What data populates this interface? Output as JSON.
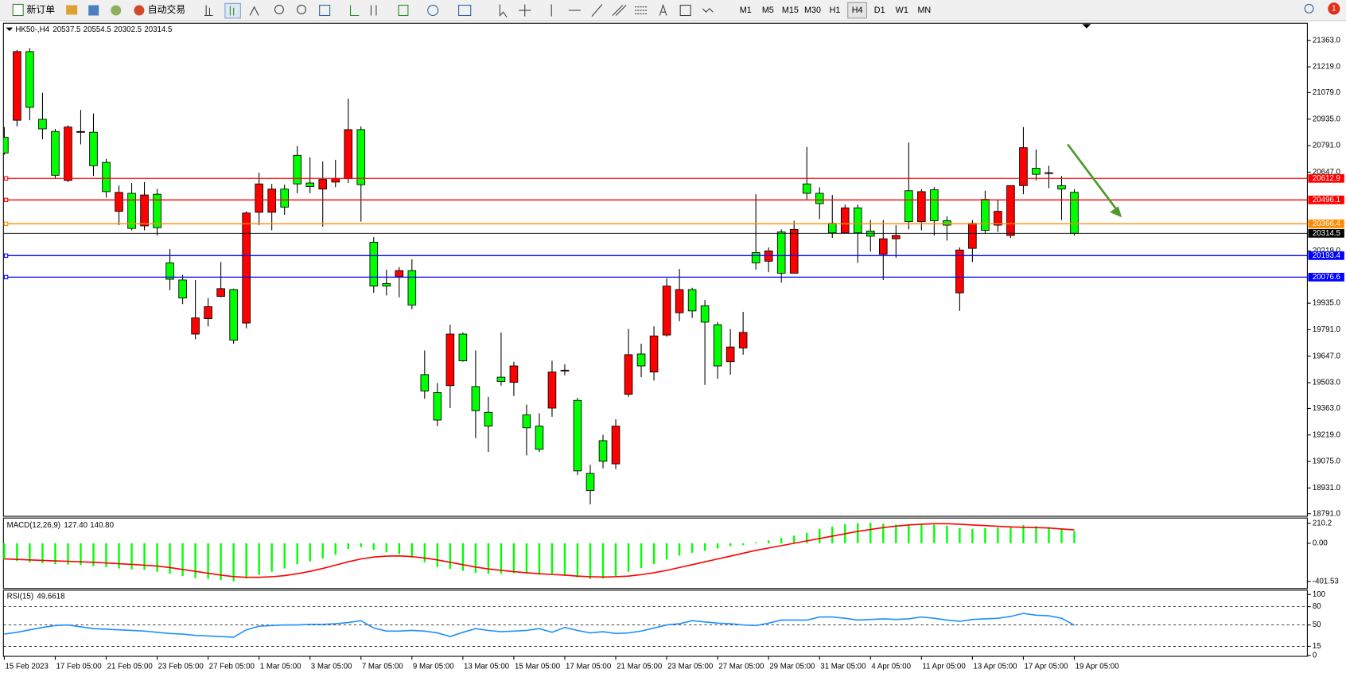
{
  "toolbar": {
    "new_order": "新订单",
    "auto_trading": "自动交易",
    "timeframes": [
      "M1",
      "M5",
      "M15",
      "M30",
      "H1",
      "H4",
      "D1",
      "W1",
      "MN"
    ]
  },
  "notifications": 1,
  "chart_data": [
    {
      "type": "candlestick",
      "title": "HK50-,H4",
      "up_color": "#ff0000",
      "down_color": "#00ff00",
      "categories": [
        "15 Feb 2023",
        null,
        null,
        null,
        "17 Feb 05:00",
        null,
        null,
        null,
        "21 Feb 05:00",
        null,
        null,
        null,
        "23 Feb 05:00",
        null,
        null,
        null,
        "27 Feb 05:00",
        null,
        null,
        null,
        "1 Mar 05:00",
        null,
        null,
        null,
        "3 Mar 05:00",
        null,
        null,
        null,
        "7 Mar 05:00",
        null,
        null,
        null,
        "9 Mar 05:00",
        null,
        null,
        null,
        "13 Mar 05:00",
        null,
        null,
        null,
        "15 Mar 05:00",
        null,
        null,
        null,
        "17 Mar 05:00",
        null,
        null,
        null,
        "21 Mar 05:00",
        null,
        null,
        null,
        "23 Mar 05:00",
        null,
        null,
        null,
        "27 Mar 05:00",
        null,
        null,
        null,
        "29 Mar 05:00",
        null,
        null,
        null,
        "31 Mar 05:00",
        null,
        null,
        null,
        "4 Apr 05:00",
        null,
        null,
        null,
        "11 Apr 05:00",
        null,
        null,
        null,
        "13 Apr 05:00",
        null,
        null,
        null,
        "17 Apr 05:00",
        null,
        null,
        null,
        "19 Apr 05:00"
      ],
      "open": [
        20836,
        20929,
        21302,
        20934,
        20868,
        20602,
        20868,
        20864,
        20700,
        20434,
        20532,
        20355,
        20527,
        20154,
        20061,
        19767,
        19851,
        19972,
        20009,
        19827,
        20429,
        20429,
        20555,
        20738,
        20588,
        20555,
        20593,
        20612,
        20878,
        20266,
        20042,
        20079,
        20112,
        19547,
        19449,
        19487,
        19767,
        19482,
        19342,
        19533,
        19505,
        19328,
        19267,
        19365,
        19571,
        19407,
        19010,
        19188,
        19062,
        19440,
        19659,
        19561,
        19762,
        19883,
        20009,
        19921,
        19818,
        19617,
        19692,
        20210,
        20163,
        20322,
        20098,
        20583,
        20532,
        20369,
        20317,
        20453,
        20327,
        20201,
        20285,
        20546,
        20378,
        20551,
        20383,
        19991,
        20233,
        20499,
        20359,
        20303,
        20574,
        20668,
        20644,
        20574,
        20537.5
      ],
      "high": [
        20892,
        21312,
        21321,
        21078,
        20882,
        20901,
        20985,
        20966,
        20719,
        20574,
        20588,
        20593,
        20555,
        20229,
        20089,
        20061,
        19963,
        20159,
        20014,
        20434,
        20644,
        20583,
        20579,
        20789,
        20728,
        20705,
        20714,
        21046,
        20896,
        20294,
        20117,
        20131,
        20173,
        19678,
        19501,
        19818,
        19776,
        19678,
        19426,
        19776,
        19617,
        19384,
        19337,
        19622,
        19603,
        19421,
        19057,
        19220,
        19304,
        19795,
        19715,
        19809,
        20070,
        20121,
        20019,
        19953,
        19832,
        19795,
        19888,
        20527,
        20238,
        20336,
        20383,
        20784,
        20565,
        20523,
        20471,
        20471,
        20387,
        20387,
        20359,
        20808,
        20555,
        20565,
        20406,
        20238,
        20387,
        20546,
        20499,
        20574,
        20892,
        20770,
        20682,
        20626,
        20554.5
      ],
      "low": [
        20742,
        20896,
        20929,
        20826,
        20612,
        20593,
        20798,
        20626,
        20509,
        20359,
        20331,
        20331,
        20303,
        20005,
        19930,
        19739,
        19809,
        19967,
        19715,
        19799,
        20359,
        20331,
        20415,
        20532,
        20532,
        20350,
        20565,
        20588,
        20378,
        19991,
        19977,
        19967,
        19902,
        19416,
        19267,
        19365,
        19617,
        19202,
        19127,
        19487,
        19431,
        19108,
        19127,
        19318,
        19543,
        19001,
        18842,
        19038,
        19034,
        19426,
        19533,
        19515,
        19753,
        19837,
        19855,
        19491,
        19524,
        19547,
        19655,
        20117,
        20103,
        20047,
        20098,
        20499,
        20392,
        20289,
        20313,
        20154,
        20215,
        20061,
        20182,
        20336,
        20331,
        20303,
        20275,
        19893,
        20159,
        20313,
        20322,
        20289,
        20527,
        20602,
        20560,
        20387,
        20302.5
      ],
      "close": [
        20751,
        21302,
        20999,
        20882,
        20630,
        20892,
        20868,
        20682,
        20541,
        20537,
        20341,
        20523,
        20345,
        20065,
        19963,
        19855,
        19916,
        20014,
        19734,
        20425,
        20583,
        20555,
        20457,
        20583,
        20569,
        20607,
        20612,
        20878,
        20579,
        20028,
        20028,
        20112,
        19925,
        19458,
        19300,
        19767,
        19622,
        19351,
        19267,
        19510,
        19594,
        19258,
        19141,
        19561,
        19571,
        19024,
        18917,
        19076,
        19267,
        19655,
        19594,
        19757,
        20028,
        20009,
        19893,
        19832,
        19594,
        19697,
        19776,
        20154,
        20219,
        20098,
        20336,
        20532,
        20476,
        20317,
        20453,
        20317,
        20299,
        20285,
        20303,
        20378,
        20541,
        20383,
        20359,
        20224,
        20369,
        20331,
        20434,
        20574,
        20780,
        20635,
        20644,
        20555,
        20314.5
      ],
      "ylim": [
        18777,
        21456
      ],
      "yticks": [
        {
          "value": 21363,
          "label": "21363.0"
        },
        {
          "value": 21219,
          "label": "21219.0"
        },
        {
          "value": 21079,
          "label": "21079.0"
        },
        {
          "value": 20935,
          "label": "20935.0"
        },
        {
          "value": 20791,
          "label": "20791.0"
        },
        {
          "value": 20647,
          "label": "20647.0"
        },
        {
          "value": 20219,
          "label": "20219.0"
        },
        {
          "value": 19935,
          "label": "19935.0"
        },
        {
          "value": 19791,
          "label": "19791.0"
        },
        {
          "value": 19647,
          "label": "19647.0"
        },
        {
          "value": 19503,
          "label": "19503.0"
        },
        {
          "value": 19363,
          "label": "19363.0"
        },
        {
          "value": 19219,
          "label": "19219.0"
        },
        {
          "value": 19075,
          "label": "19075.0"
        },
        {
          "value": 18931,
          "label": "18931.0"
        },
        {
          "value": 18791,
          "label": "18791.0"
        }
      ],
      "levels": [
        {
          "value": 20612.9,
          "color": "#ff0000"
        },
        {
          "value": 20496.1,
          "color": "#ff0000"
        },
        {
          "value": 20366.4,
          "color": "#ff8c00"
        },
        {
          "value": 20193.4,
          "color": "#0000ff"
        },
        {
          "value": 20076.6,
          "color": "#0000ff"
        }
      ]
    },
    {
      "type": "macd",
      "title": "MACD(12,26,9)",
      "readout": [
        {
          "value": 127.4,
          "label": "127.40"
        },
        {
          "value": 140.8,
          "label": "140.80"
        }
      ],
      "color": "#00ff00",
      "signal_color": "#ff0000",
      "values": [
        -170,
        -185,
        -200,
        -210,
        -220,
        -225,
        -230,
        -240,
        -250,
        -265,
        -275,
        -280,
        -300,
        -320,
        -345,
        -365,
        -375,
        -385,
        -400,
        -370,
        -330,
        -300,
        -265,
        -220,
        -190,
        -160,
        -120,
        -60,
        -40,
        -70,
        -95,
        -115,
        -150,
        -200,
        -250,
        -270,
        -290,
        -310,
        -320,
        -320,
        -315,
        -320,
        -330,
        -320,
        -330,
        -360,
        -375,
        -370,
        -345,
        -300,
        -260,
        -220,
        -170,
        -130,
        -100,
        -80,
        -55,
        -30,
        -20,
        10,
        30,
        55,
        80,
        110,
        150,
        175,
        200,
        210,
        215,
        205,
        195,
        200,
        205,
        195,
        185,
        160,
        150,
        160,
        165,
        175,
        190,
        180,
        170,
        155,
        127.4
      ],
      "signal": [
        -165,
        -170,
        -175,
        -180,
        -185,
        -190,
        -195,
        -200,
        -207,
        -215,
        -222,
        -230,
        -240,
        -255,
        -275,
        -295,
        -315,
        -335,
        -350,
        -358,
        -358,
        -352,
        -340,
        -320,
        -295,
        -265,
        -230,
        -195,
        -165,
        -145,
        -135,
        -133,
        -140,
        -155,
        -175,
        -200,
        -225,
        -250,
        -270,
        -285,
        -298,
        -310,
        -320,
        -328,
        -335,
        -345,
        -352,
        -355,
        -352,
        -345,
        -330,
        -310,
        -285,
        -255,
        -225,
        -195,
        -165,
        -135,
        -105,
        -75,
        -50,
        -25,
        0,
        25,
        50,
        75,
        100,
        125,
        145,
        165,
        180,
        192,
        200,
        205,
        205,
        200,
        192,
        185,
        178,
        172,
        168,
        165,
        160,
        150,
        140.8
      ],
      "ylim": [
        -475,
        265
      ],
      "yticks": [
        210.2,
        {
          "value": 0,
          "label": "0.00"
        },
        -401.53
      ]
    },
    {
      "type": "line",
      "title": "RSI(15)",
      "color": "#1e90ff",
      "values": [
        35,
        38,
        42,
        46,
        49,
        50,
        47,
        44,
        43,
        42,
        41,
        40,
        38,
        36,
        35,
        33,
        32,
        31,
        30,
        42,
        48,
        49,
        50,
        50,
        51,
        51,
        52,
        54,
        57,
        45,
        40,
        40,
        41,
        40,
        37,
        31,
        38,
        44,
        41,
        39,
        40,
        41,
        44,
        38,
        46,
        41,
        37,
        39,
        36,
        37,
        40,
        45,
        50,
        52,
        57,
        55,
        53,
        52,
        50,
        49,
        53,
        58,
        58,
        58,
        63,
        63,
        61,
        58,
        59,
        60,
        59,
        60,
        63,
        61,
        58,
        56,
        59,
        60,
        61,
        64,
        69,
        66,
        65,
        61,
        49.6618
      ],
      "ylim": [
        -1.4,
        107
      ],
      "yticks": [
        100,
        80,
        50,
        15,
        0
      ]
    }
  ]
}
